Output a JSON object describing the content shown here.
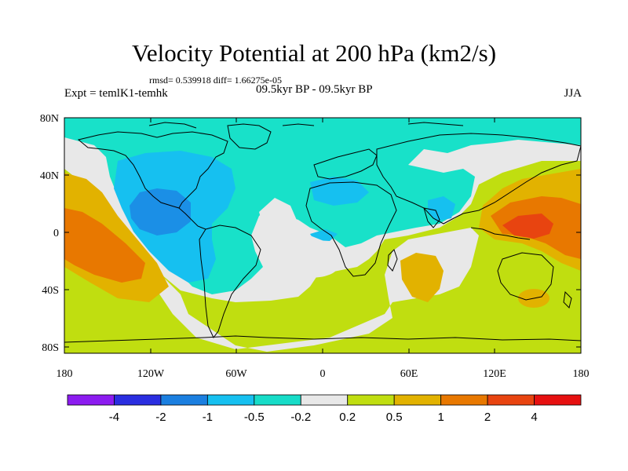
{
  "header": {
    "title": "Velocity Potential at 200 hPa (km2/s)",
    "stats": "rmsd= 0.539918 diff= 1.66275e-05",
    "experiment": "Expt = temlK1-temhk",
    "period": "09.5kyr BP - 09.5kyr BP",
    "season": "JJA"
  },
  "axes": {
    "lon_labels": [
      "180",
      "120W",
      "60W",
      "0",
      "60E",
      "120E",
      "180"
    ],
    "lat_labels": [
      "80N",
      "40N",
      "0",
      "40S",
      "80S"
    ]
  },
  "colorbar": {
    "labels": [
      "-4",
      "-2",
      "-1",
      "-0.5",
      "-0.2",
      "0.2",
      "0.5",
      "1",
      "2",
      "4"
    ],
    "colors": [
      "#8c1cf0",
      "#2a2ee0",
      "#1b7fe0",
      "#16c0f0",
      "#17dcc8",
      "#e8e8e8",
      "#c0de10",
      "#e2b200",
      "#e87800",
      "#e84410",
      "#e61010"
    ]
  },
  "map_colors": {
    "cyan": "#18e1c9",
    "light_blue": "#16c0f0",
    "mid_blue": "#1b8fe6",
    "gray": "#e8e8e8",
    "yellow_green": "#c0de10",
    "gold": "#e2b200",
    "orange": "#e87800",
    "red_orange": "#e84410"
  }
}
